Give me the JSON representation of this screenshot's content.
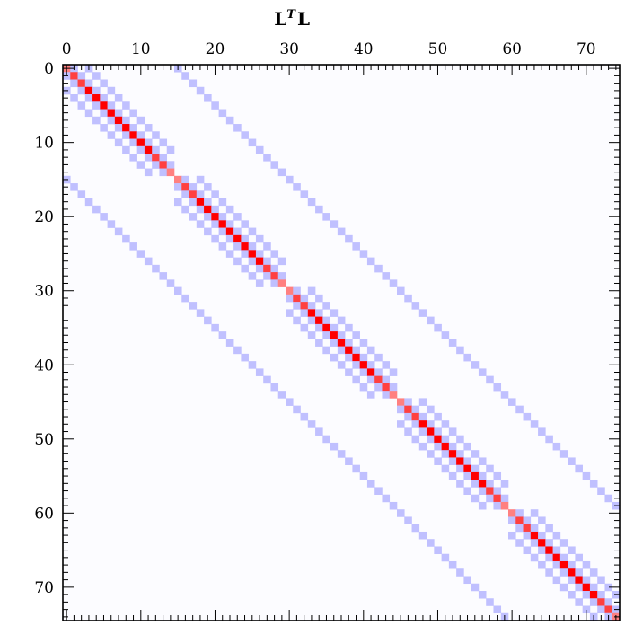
{
  "chart_data": {
    "type": "heatmap",
    "title": "L",
    "title_superscript": "T",
    "title_suffix": "L",
    "n": 75,
    "x_ticks": [
      0,
      10,
      20,
      30,
      40,
      50,
      60,
      70
    ],
    "y_ticks": [
      0,
      10,
      20,
      30,
      40,
      50,
      60,
      70
    ],
    "x_range": [
      0,
      74
    ],
    "y_range": [
      0,
      74
    ],
    "x_axis_position": "top",
    "y_axis_direction": "down",
    "grid": false,
    "colors": {
      "background": "#fcfcff",
      "main_diagonal_strong": "#ff0000",
      "main_diagonal_medium": "#ff4040",
      "main_diagonal_light": "#ff8080",
      "off_diagonal": "#c0c0ff",
      "axes": "#000000"
    },
    "block_size": 15,
    "block_count": 5,
    "diagonal_values_in_block": [
      0.5,
      0.75,
      0.875,
      1,
      1,
      1,
      1,
      1,
      1,
      1,
      1,
      1,
      0.875,
      0.75,
      0.5
    ],
    "off_diagonal_bands": [
      {
        "offset": 1,
        "rule": "within-block"
      },
      {
        "offset": 3,
        "rule": "short-range",
        "value": 0.25
      },
      {
        "offset": 15,
        "rule": "all",
        "value": 0.25
      }
    ]
  }
}
